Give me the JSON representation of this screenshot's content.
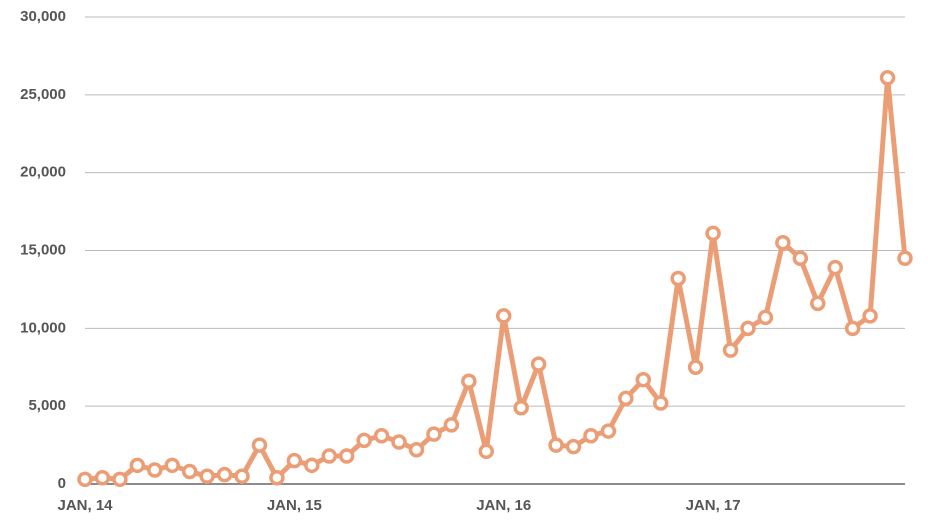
{
  "chart_data": {
    "type": "line",
    "categories": [
      "JAN, 14",
      null,
      null,
      null,
      null,
      null,
      null,
      null,
      null,
      null,
      null,
      null,
      "JAN, 15",
      null,
      null,
      null,
      null,
      null,
      null,
      null,
      null,
      null,
      null,
      null,
      "JAN, 16",
      null,
      null,
      null,
      null,
      null,
      null,
      null,
      null,
      null,
      null,
      null,
      "JAN, 17",
      null,
      null,
      null,
      null,
      null,
      null,
      null,
      null,
      null,
      null,
      null
    ],
    "series": [
      {
        "color": "#eb9e76",
        "values": [
          300,
          400,
          300,
          1200,
          900,
          1200,
          800,
          500,
          600,
          500,
          2500,
          400,
          1500,
          1200,
          1800,
          1800,
          2800,
          3100,
          2700,
          2200,
          3200,
          3800,
          6600,
          2100,
          10800,
          4900,
          7700,
          2500,
          2400,
          3100,
          3400,
          5500,
          6700,
          5200,
          13200,
          7500,
          16100,
          8600,
          10000,
          10700,
          15500,
          14500,
          11600,
          13900,
          10000,
          10800,
          26100,
          14500
        ]
      }
    ],
    "ylim": [
      0,
      30000
    ],
    "yticks": [
      0,
      {
        "value": 5000,
        "label": "5,000"
      },
      {
        "value": 10000,
        "label": "10,000"
      },
      {
        "value": 15000,
        "label": "15,000"
      },
      {
        "value": 20000,
        "label": "20,000"
      },
      {
        "value": 25000,
        "label": "25,000"
      },
      {
        "value": 30000,
        "label": "30,000"
      }
    ],
    "grid": true
  }
}
